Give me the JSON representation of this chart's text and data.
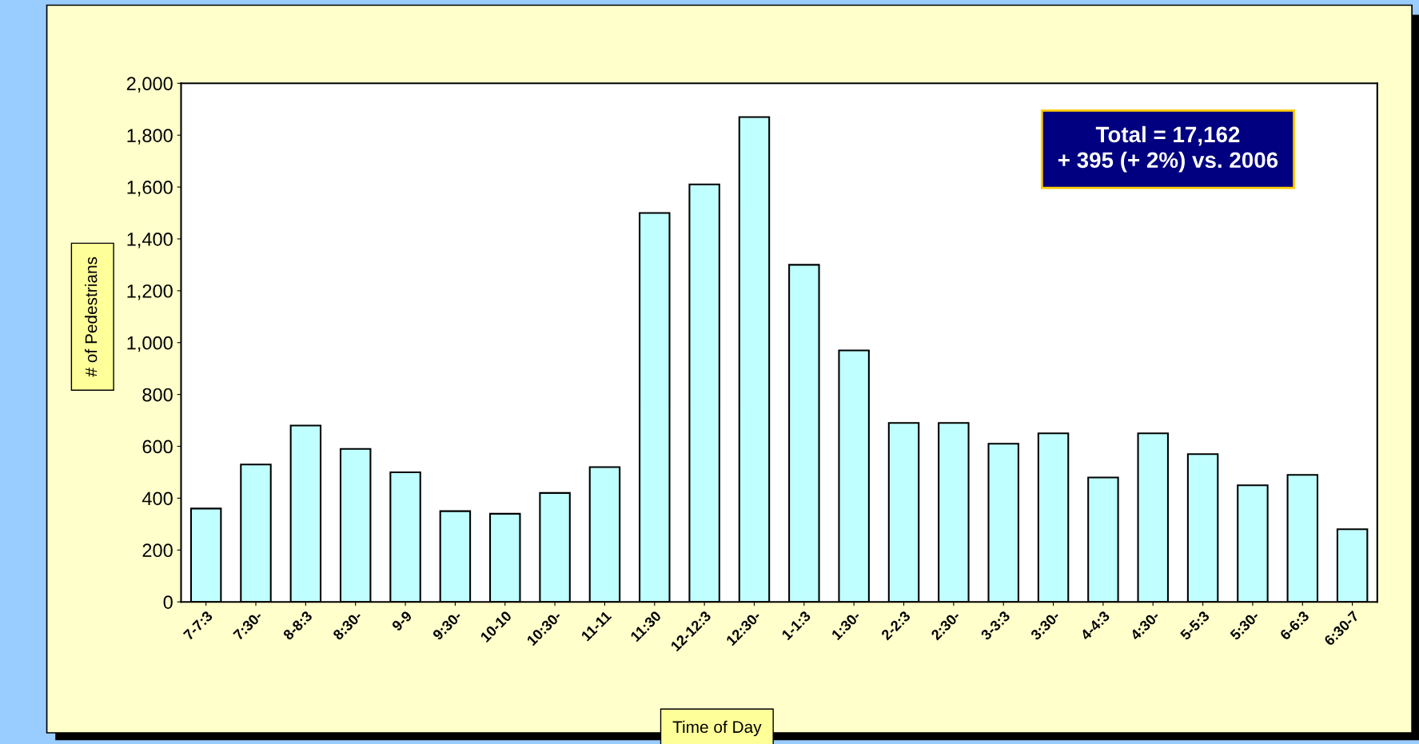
{
  "chart_data": {
    "type": "bar",
    "categories": [
      "7-7:3",
      "7:30-",
      "8-8:3",
      "8:30-",
      "9-9",
      "9:30-",
      "10-10",
      "10:30-",
      "11-11",
      "11:30",
      "12-12:3",
      "12:30-",
      "1-1:3",
      "1:30-",
      "2-2:3",
      "2:30-",
      "3-3:3",
      "3:30-",
      "4-4:3",
      "4:30-",
      "5-5:3",
      "5:30-",
      "6-6:3",
      "6:30-7"
    ],
    "values": [
      360,
      530,
      680,
      590,
      500,
      350,
      340,
      420,
      520,
      1500,
      1610,
      1870,
      1300,
      970,
      690,
      690,
      610,
      650,
      480,
      650,
      570,
      450,
      490,
      280
    ],
    "color": "#c0ffff",
    "xlabel": "Time of Day",
    "ylabel": "# of Pedestrians",
    "annotations": [
      "Total = 17,162",
      "+ 395 (+ 2%) vs. 2006"
    ],
    "ylim": [
      0,
      2000
    ],
    "yticks": [
      {
        "value": 0,
        "label": "0"
      },
      {
        "value": 200,
        "label": "200"
      },
      {
        "value": 400,
        "label": "400"
      },
      {
        "value": 600,
        "label": "600"
      },
      {
        "value": 800,
        "label": "800"
      },
      {
        "value": 1000,
        "label": "1,000"
      },
      {
        "value": 1200,
        "label": "1,200"
      },
      {
        "value": 1400,
        "label": "1,400"
      },
      {
        "value": 1600,
        "label": "1,600"
      },
      {
        "value": 1800,
        "label": "1,800"
      },
      {
        "value": 2000,
        "label": "2,000"
      }
    ],
    "grid": false,
    "legend": false
  }
}
